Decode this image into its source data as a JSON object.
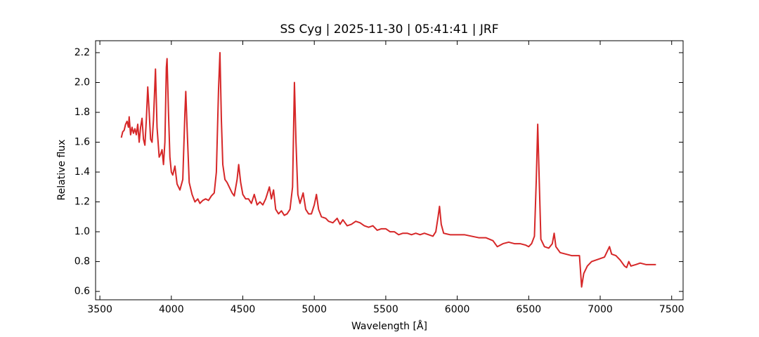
{
  "chart_data": {
    "type": "line",
    "title": "SS Cyg | 2025-11-30 | 05:41:41 | JRF",
    "xlabel": "Wavelength [Å]",
    "ylabel": "Relative flux",
    "xlim": [
      3470,
      7580
    ],
    "ylim": [
      0.544,
      2.28
    ],
    "xticks": [
      3500,
      4000,
      4500,
      5000,
      5500,
      6000,
      6500,
      7000,
      7500
    ],
    "yticks": [
      0.6,
      0.8,
      {
        "value": 1.0,
        "label": "1.0"
      },
      1.2,
      1.4,
      1.6,
      1.8,
      {
        "value": 2.0,
        "label": "2.0"
      },
      2.2
    ],
    "series": [
      {
        "color": "#d62728",
        "x": [
          3650,
          3660,
          3670,
          3680,
          3690,
          3700,
          3705,
          3715,
          3725,
          3735,
          3745,
          3755,
          3765,
          3775,
          3785,
          3795,
          3805,
          3815,
          3825,
          3835,
          3845,
          3855,
          3865,
          3875,
          3889,
          3900,
          3915,
          3925,
          3935,
          3945,
          3955,
          3965,
          3970,
          3980,
          3990,
          4000,
          4010,
          4025,
          4040,
          4060,
          4080,
          4095,
          4101,
          4110,
          4125,
          4145,
          4165,
          4185,
          4200,
          4220,
          4240,
          4260,
          4280,
          4300,
          4315,
          4330,
          4340,
          4350,
          4360,
          4375,
          4390,
          4405,
          4425,
          4440,
          4460,
          4471,
          4485,
          4500,
          4520,
          4540,
          4560,
          4580,
          4600,
          4620,
          4640,
          4660,
          4686,
          4700,
          4715,
          4730,
          4750,
          4770,
          4790,
          4810,
          4830,
          4848,
          4861,
          4872,
          4885,
          4900,
          4922,
          4940,
          4960,
          4980,
          5000,
          5015,
          5030,
          5050,
          5080,
          5100,
          5130,
          5160,
          5180,
          5200,
          5230,
          5260,
          5290,
          5320,
          5350,
          5380,
          5410,
          5440,
          5470,
          5500,
          5530,
          5560,
          5590,
          5620,
          5650,
          5680,
          5710,
          5740,
          5770,
          5800,
          5830,
          5850,
          5866,
          5876,
          5888,
          5905,
          5950,
          6000,
          6050,
          6100,
          6150,
          6200,
          6250,
          6280,
          6320,
          6360,
          6400,
          6440,
          6480,
          6500,
          6520,
          6540,
          6553,
          6563,
          6572,
          6585,
          6610,
          6640,
          6665,
          6678,
          6690,
          6720,
          6760,
          6800,
          6840,
          6855,
          6870,
          6885,
          6910,
          6940,
          6970,
          7000,
          7030,
          7065,
          7080,
          7110,
          7140,
          7170,
          7185,
          7200,
          7215,
          7250,
          7280,
          7320,
          7360,
          7390
        ],
        "values": [
          1.63,
          1.67,
          1.68,
          1.72,
          1.74,
          1.7,
          1.77,
          1.65,
          1.7,
          1.66,
          1.69,
          1.65,
          1.72,
          1.6,
          1.7,
          1.76,
          1.62,
          1.58,
          1.75,
          1.97,
          1.8,
          1.62,
          1.6,
          1.75,
          2.09,
          1.7,
          1.5,
          1.52,
          1.55,
          1.45,
          1.6,
          2.1,
          2.16,
          1.8,
          1.5,
          1.4,
          1.38,
          1.44,
          1.32,
          1.28,
          1.35,
          1.8,
          1.94,
          1.7,
          1.33,
          1.25,
          1.2,
          1.22,
          1.19,
          1.21,
          1.22,
          1.21,
          1.24,
          1.26,
          1.4,
          1.95,
          2.2,
          1.75,
          1.45,
          1.35,
          1.33,
          1.3,
          1.26,
          1.24,
          1.35,
          1.45,
          1.33,
          1.25,
          1.22,
          1.22,
          1.19,
          1.25,
          1.18,
          1.2,
          1.18,
          1.22,
          1.3,
          1.22,
          1.28,
          1.15,
          1.12,
          1.14,
          1.11,
          1.12,
          1.15,
          1.3,
          2.0,
          1.6,
          1.25,
          1.19,
          1.26,
          1.15,
          1.12,
          1.12,
          1.18,
          1.25,
          1.15,
          1.1,
          1.09,
          1.07,
          1.06,
          1.09,
          1.05,
          1.08,
          1.04,
          1.05,
          1.07,
          1.06,
          1.04,
          1.03,
          1.04,
          1.01,
          1.02,
          1.02,
          1.0,
          1.0,
          0.98,
          0.99,
          0.99,
          0.98,
          0.99,
          0.98,
          0.99,
          0.98,
          0.97,
          1.0,
          1.1,
          1.17,
          1.05,
          0.99,
          0.98,
          0.98,
          0.98,
          0.97,
          0.96,
          0.96,
          0.94,
          0.9,
          0.92,
          0.93,
          0.92,
          0.92,
          0.91,
          0.9,
          0.92,
          0.97,
          1.35,
          1.72,
          1.4,
          0.95,
          0.9,
          0.89,
          0.92,
          0.99,
          0.9,
          0.86,
          0.85,
          0.84,
          0.84,
          0.84,
          0.63,
          0.72,
          0.77,
          0.8,
          0.81,
          0.82,
          0.83,
          0.9,
          0.85,
          0.84,
          0.81,
          0.77,
          0.76,
          0.8,
          0.77,
          0.78,
          0.79,
          0.78,
          0.78,
          0.78
        ]
      }
    ]
  }
}
